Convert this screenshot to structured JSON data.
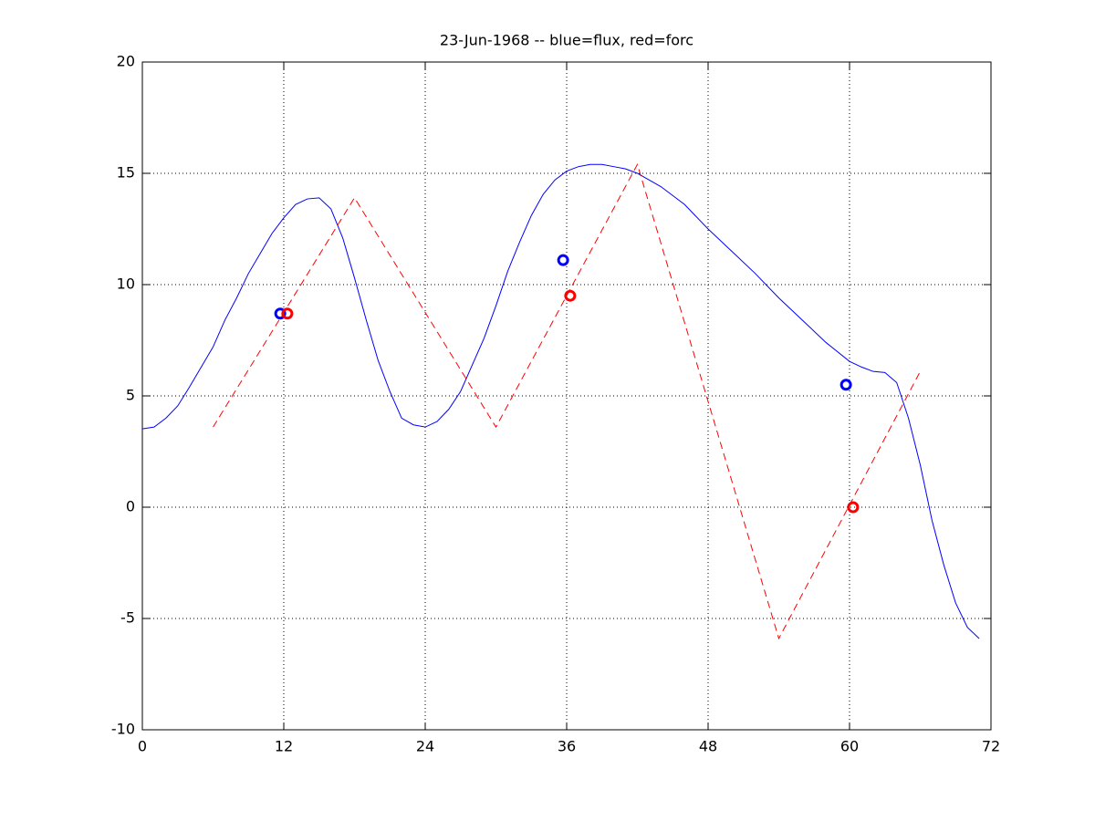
{
  "chart_data": {
    "type": "line",
    "title": "23-Jun-1968 -- blue=flux, red=forc",
    "xlim": [
      0,
      72
    ],
    "xticks": [
      0,
      12,
      24,
      36,
      48,
      60,
      72
    ],
    "ylim": [
      -10,
      20
    ],
    "yticks": [
      -10,
      -5,
      0,
      5,
      10,
      15,
      20
    ],
    "grid": true,
    "series": [
      {
        "color": "#0000ff",
        "style": "solid",
        "marker": "none",
        "x": [
          0,
          1,
          2,
          3,
          4,
          5,
          6,
          7,
          8,
          9,
          10,
          11,
          12,
          13,
          14,
          15,
          16,
          17,
          18,
          19,
          20,
          21,
          22,
          23,
          24,
          25,
          26,
          27,
          28,
          29,
          30,
          31,
          32,
          33,
          34,
          35,
          36,
          37,
          38,
          39,
          40,
          41,
          42,
          43,
          44,
          45,
          46,
          48,
          50,
          52,
          54,
          56,
          58,
          60,
          61,
          62,
          63,
          64,
          65,
          66,
          67,
          68,
          69,
          70,
          71
        ],
        "values": [
          3.52,
          3.6,
          4.0,
          4.55,
          5.4,
          6.3,
          7.2,
          8.4,
          9.4,
          10.5,
          11.4,
          12.3,
          13.0,
          13.6,
          13.85,
          13.9,
          13.4,
          12.1,
          10.3,
          8.4,
          6.6,
          5.2,
          4.0,
          3.7,
          3.6,
          3.85,
          4.4,
          5.2,
          6.4,
          7.6,
          9.05,
          10.6,
          11.9,
          13.1,
          14.05,
          14.7,
          15.1,
          15.3,
          15.4,
          15.4,
          15.3,
          15.2,
          15.0,
          14.7,
          14.4,
          14.0,
          13.6,
          12.5,
          11.5,
          10.5,
          9.4,
          8.4,
          7.4,
          6.55,
          6.3,
          6.1,
          6.05,
          5.6,
          4.0,
          1.9,
          -0.6,
          -2.6,
          -4.3,
          -5.4,
          -5.9
        ]
      },
      {
        "color": "#ff0000",
        "style": "dashed",
        "marker": "none",
        "x": [
          6,
          18,
          30,
          42,
          54,
          66
        ],
        "values": [
          3.6,
          13.9,
          3.6,
          15.4,
          -5.9,
          6.1
        ]
      },
      {
        "color": "#0000ff",
        "style": "none",
        "marker": "o",
        "x": [
          11.7,
          35.7,
          59.7
        ],
        "values": [
          8.7,
          11.1,
          5.5
        ]
      },
      {
        "color": "#ff0000",
        "style": "none",
        "marker": "o",
        "x": [
          12.3,
          36.3,
          60.3
        ],
        "values": [
          8.7,
          9.5,
          0
        ]
      }
    ]
  }
}
